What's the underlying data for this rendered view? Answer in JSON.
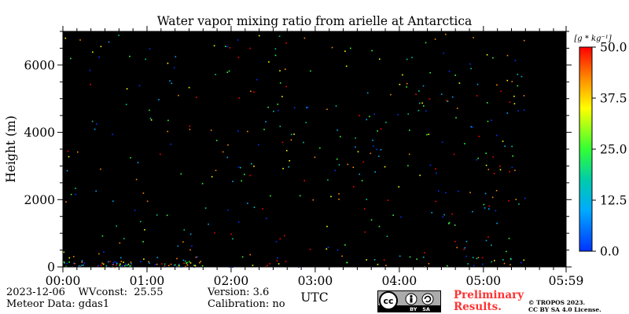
{
  "chart_data": {
    "type": "heatmap",
    "title": "Water vapor mixing ratio from arielle at Antarctica",
    "xlabel": "UTC",
    "ylabel": "Height (m)",
    "x_ticks": [
      "00:00",
      "01:00",
      "02:00",
      "03:00",
      "04:00",
      "05:00",
      "05:59"
    ],
    "y_ticks": [
      "0",
      "2000",
      "4000",
      "6000"
    ],
    "ylim": [
      0,
      7000
    ],
    "xlim_hours": [
      0,
      5.983
    ],
    "background": "#000000",
    "colorbar": {
      "unit_label": "[g * kg⁻¹]",
      "range": [
        0.0,
        50.0
      ],
      "ticks": [
        "0.0",
        "12.5",
        "25.0",
        "37.5",
        "50.0"
      ],
      "colors": [
        "#0033ff",
        "#00aaff",
        "#00ccaa",
        "#33ff33",
        "#ffff00",
        "#ff8800",
        "#ff0000"
      ]
    }
  },
  "footer": {
    "date_wvconst": "2023-12-06    WVconst:  25.55",
    "meteor": "Meteor Data: gdas1",
    "version": "Version: 3.6",
    "calibration": "Calibration: no",
    "preliminary_line1": "Preliminary",
    "preliminary_line2": "Results.",
    "copyright_line1": "© TROPOS 2023.",
    "copyright_line2": "CC BY SA 4.0 License."
  },
  "cc_badge": {
    "text": "BY   SA"
  }
}
